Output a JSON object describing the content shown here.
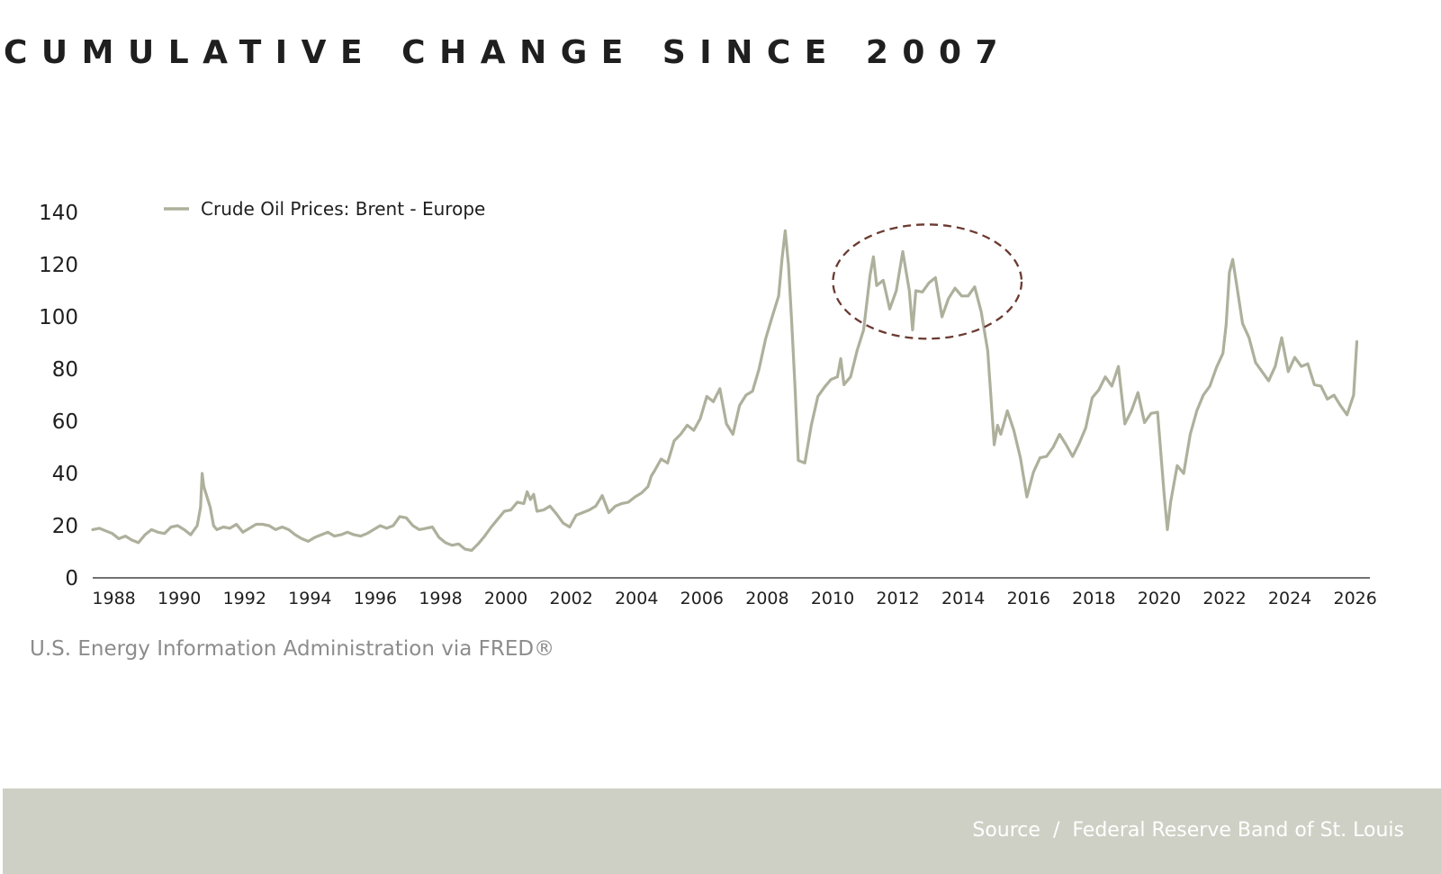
{
  "title": "CUMULATIVE CHANGE SINCE 2007",
  "credit": "U.S. Energy Information Administration via FRED®",
  "footer": {
    "source_label": "Source",
    "separator": "/",
    "source_name": "Federal Reserve Band of St. Louis"
  },
  "colors": {
    "series": "#aeb09c",
    "highlight": "#6b3a30",
    "footer_bg": "#cfd0c5",
    "text": "#1f1f1f"
  },
  "chart_data": {
    "type": "line",
    "title": "CUMULATIVE CHANGE SINCE 2007",
    "xlabel": "",
    "ylabel": "",
    "xlim": [
      1987.4,
      2026.5
    ],
    "ylim": [
      0,
      140
    ],
    "grid": false,
    "legend_position": "top-left",
    "y_ticks": [
      "0",
      "20",
      "40",
      "60",
      "80",
      "100",
      "120",
      "140"
    ],
    "x_ticks": [
      "1988",
      "1990",
      "1992",
      "1994",
      "1996",
      "1998",
      "2000",
      "2002",
      "2004",
      "2006",
      "2008",
      "2010",
      "2012",
      "2014",
      "2016",
      "2018",
      "2020",
      "2022",
      "2024",
      "2026"
    ],
    "series": [
      {
        "name": "Crude Oil Prices: Brent - Europe",
        "points": [
          [
            1987.4,
            18.5
          ],
          [
            1987.6,
            19
          ],
          [
            1987.8,
            18
          ],
          [
            1988.0,
            17
          ],
          [
            1988.2,
            15
          ],
          [
            1988.4,
            16
          ],
          [
            1988.6,
            14.5
          ],
          [
            1988.8,
            13.5
          ],
          [
            1989.0,
            16.5
          ],
          [
            1989.2,
            18.5
          ],
          [
            1989.4,
            17.5
          ],
          [
            1989.6,
            17
          ],
          [
            1989.8,
            19.5
          ],
          [
            1990.0,
            20
          ],
          [
            1990.2,
            18.5
          ],
          [
            1990.4,
            16.5
          ],
          [
            1990.6,
            20
          ],
          [
            1990.7,
            27
          ],
          [
            1990.75,
            40
          ],
          [
            1990.8,
            35
          ],
          [
            1991.0,
            27
          ],
          [
            1991.1,
            20
          ],
          [
            1991.2,
            18.5
          ],
          [
            1991.4,
            19.5
          ],
          [
            1991.6,
            19
          ],
          [
            1991.8,
            20.5
          ],
          [
            1992.0,
            17.5
          ],
          [
            1992.2,
            19
          ],
          [
            1992.4,
            20.5
          ],
          [
            1992.6,
            20.5
          ],
          [
            1992.8,
            20
          ],
          [
            1993.0,
            18.5
          ],
          [
            1993.2,
            19.5
          ],
          [
            1993.4,
            18.5
          ],
          [
            1993.6,
            16.5
          ],
          [
            1993.8,
            15
          ],
          [
            1994.0,
            14
          ],
          [
            1994.2,
            15.5
          ],
          [
            1994.4,
            16.5
          ],
          [
            1994.6,
            17.5
          ],
          [
            1994.8,
            16
          ],
          [
            1995.0,
            16.5
          ],
          [
            1995.2,
            17.5
          ],
          [
            1995.4,
            16.5
          ],
          [
            1995.6,
            16
          ],
          [
            1995.8,
            17
          ],
          [
            1996.0,
            18.5
          ],
          [
            1996.2,
            20
          ],
          [
            1996.4,
            19
          ],
          [
            1996.6,
            20
          ],
          [
            1996.8,
            23.5
          ],
          [
            1997.0,
            23
          ],
          [
            1997.2,
            20
          ],
          [
            1997.4,
            18.5
          ],
          [
            1997.6,
            19
          ],
          [
            1997.8,
            19.5
          ],
          [
            1998.0,
            15.5
          ],
          [
            1998.2,
            13.5
          ],
          [
            1998.4,
            12.5
          ],
          [
            1998.6,
            13
          ],
          [
            1998.8,
            11
          ],
          [
            1999.0,
            10.5
          ],
          [
            1999.2,
            13
          ],
          [
            1999.4,
            16
          ],
          [
            1999.6,
            19.5
          ],
          [
            1999.8,
            22.5
          ],
          [
            2000.0,
            25.5
          ],
          [
            2000.2,
            26
          ],
          [
            2000.4,
            29
          ],
          [
            2000.6,
            28.5
          ],
          [
            2000.7,
            33
          ],
          [
            2000.8,
            30
          ],
          [
            2000.9,
            32
          ],
          [
            2001.0,
            25.5
          ],
          [
            2001.2,
            26
          ],
          [
            2001.4,
            27.5
          ],
          [
            2001.6,
            24.5
          ],
          [
            2001.8,
            21
          ],
          [
            2002.0,
            19.5
          ],
          [
            2002.2,
            24
          ],
          [
            2002.4,
            25
          ],
          [
            2002.6,
            26
          ],
          [
            2002.8,
            27.5
          ],
          [
            2003.0,
            31.5
          ],
          [
            2003.2,
            25
          ],
          [
            2003.4,
            27.5
          ],
          [
            2003.6,
            28.5
          ],
          [
            2003.8,
            29
          ],
          [
            2004.0,
            31
          ],
          [
            2004.2,
            32.5
          ],
          [
            2004.4,
            35
          ],
          [
            2004.5,
            39
          ],
          [
            2004.6,
            41
          ],
          [
            2004.8,
            45.5
          ],
          [
            2005.0,
            44
          ],
          [
            2005.2,
            52.5
          ],
          [
            2005.4,
            55
          ],
          [
            2005.6,
            58.5
          ],
          [
            2005.8,
            56.5
          ],
          [
            2006.0,
            61
          ],
          [
            2006.2,
            69.5
          ],
          [
            2006.4,
            67.5
          ],
          [
            2006.6,
            72.5
          ],
          [
            2006.8,
            59
          ],
          [
            2007.0,
            55
          ],
          [
            2007.2,
            66
          ],
          [
            2007.4,
            70
          ],
          [
            2007.6,
            71.5
          ],
          [
            2007.8,
            80
          ],
          [
            2008.0,
            91.5
          ],
          [
            2008.2,
            100
          ],
          [
            2008.4,
            108
          ],
          [
            2008.5,
            122
          ],
          [
            2008.6,
            133
          ],
          [
            2008.7,
            120
          ],
          [
            2008.8,
            98
          ],
          [
            2008.9,
            73
          ],
          [
            2009.0,
            45
          ],
          [
            2009.2,
            44
          ],
          [
            2009.4,
            58.5
          ],
          [
            2009.6,
            69.5
          ],
          [
            2009.8,
            73
          ],
          [
            2010.0,
            76
          ],
          [
            2010.2,
            77
          ],
          [
            2010.3,
            84
          ],
          [
            2010.4,
            74
          ],
          [
            2010.6,
            77
          ],
          [
            2010.8,
            87
          ],
          [
            2011.0,
            95
          ],
          [
            2011.2,
            116
          ],
          [
            2011.3,
            123
          ],
          [
            2011.4,
            112
          ],
          [
            2011.6,
            114
          ],
          [
            2011.8,
            103
          ],
          [
            2012.0,
            110
          ],
          [
            2012.2,
            125
          ],
          [
            2012.4,
            110
          ],
          [
            2012.5,
            95
          ],
          [
            2012.6,
            110
          ],
          [
            2012.8,
            109.5
          ],
          [
            2013.0,
            113
          ],
          [
            2013.2,
            115
          ],
          [
            2013.4,
            100
          ],
          [
            2013.6,
            107
          ],
          [
            2013.8,
            111
          ],
          [
            2014.0,
            108
          ],
          [
            2014.2,
            108
          ],
          [
            2014.4,
            111.5
          ],
          [
            2014.6,
            102
          ],
          [
            2014.8,
            87
          ],
          [
            2015.0,
            51
          ],
          [
            2015.1,
            58.5
          ],
          [
            2015.2,
            55
          ],
          [
            2015.4,
            64
          ],
          [
            2015.6,
            56.5
          ],
          [
            2015.8,
            46
          ],
          [
            2016.0,
            31
          ],
          [
            2016.2,
            40.5
          ],
          [
            2016.4,
            46
          ],
          [
            2016.6,
            46.5
          ],
          [
            2016.8,
            50
          ],
          [
            2017.0,
            55
          ],
          [
            2017.2,
            51
          ],
          [
            2017.4,
            46.5
          ],
          [
            2017.6,
            51.5
          ],
          [
            2017.8,
            57.5
          ],
          [
            2018.0,
            69
          ],
          [
            2018.2,
            72
          ],
          [
            2018.4,
            77
          ],
          [
            2018.6,
            73.5
          ],
          [
            2018.8,
            81
          ],
          [
            2019.0,
            59
          ],
          [
            2019.2,
            64
          ],
          [
            2019.4,
            71
          ],
          [
            2019.6,
            59.5
          ],
          [
            2019.8,
            63
          ],
          [
            2020.0,
            63.5
          ],
          [
            2020.2,
            32
          ],
          [
            2020.3,
            18.5
          ],
          [
            2020.4,
            29
          ],
          [
            2020.6,
            43
          ],
          [
            2020.8,
            40
          ],
          [
            2021.0,
            55
          ],
          [
            2021.2,
            64
          ],
          [
            2021.4,
            70
          ],
          [
            2021.6,
            73.5
          ],
          [
            2021.8,
            80.5
          ],
          [
            2022.0,
            86
          ],
          [
            2022.1,
            97
          ],
          [
            2022.2,
            117
          ],
          [
            2022.3,
            122
          ],
          [
            2022.4,
            114
          ],
          [
            2022.6,
            97.5
          ],
          [
            2022.8,
            92
          ],
          [
            2023.0,
            82.5
          ],
          [
            2023.2,
            79
          ],
          [
            2023.4,
            75.5
          ],
          [
            2023.6,
            81
          ],
          [
            2023.8,
            92
          ],
          [
            2024.0,
            79
          ],
          [
            2024.2,
            84.5
          ],
          [
            2024.4,
            81
          ],
          [
            2024.6,
            82
          ],
          [
            2024.8,
            74
          ],
          [
            2025.0,
            73.5
          ],
          [
            2025.2,
            68.5
          ],
          [
            2025.4,
            70
          ],
          [
            2025.6,
            66
          ],
          [
            2025.8,
            62.5
          ],
          [
            2026.0,
            70
          ],
          [
            2026.1,
            90.5
          ]
        ]
      }
    ]
  }
}
